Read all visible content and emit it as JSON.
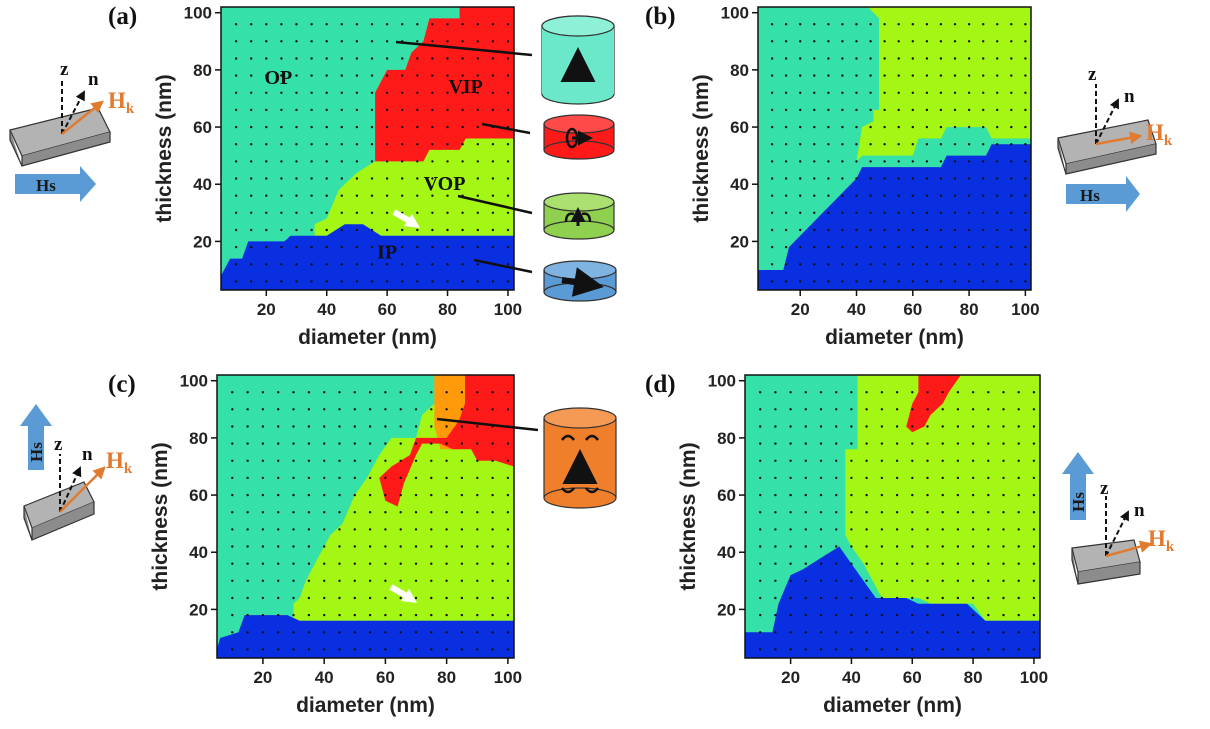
{
  "panels": [
    {
      "id": "a",
      "label": "(a)",
      "xlabel": "diameter (nm)",
      "ylabel": "thickness (nm)",
      "region_labels": [
        "OP",
        "VIP",
        "VOP",
        "IP"
      ],
      "field": "horizontal"
    },
    {
      "id": "b",
      "label": "(b)",
      "xlabel": "diameter (nm)",
      "ylabel": "thickness (nm)",
      "region_labels": [],
      "field": "horizontal"
    },
    {
      "id": "c",
      "label": "(c)",
      "xlabel": "diameter (nm)",
      "ylabel": "thickness (nm)",
      "region_labels": [],
      "field": "vertical"
    },
    {
      "id": "d",
      "label": "(d)",
      "xlabel": "diameter (nm)",
      "ylabel": "thickness (nm)",
      "region_labels": [],
      "field": "vertical"
    }
  ],
  "legend_symbols": {
    "z": "z",
    "n": "n",
    "hk": "H",
    "hk_sub": "k",
    "hs": "Hs"
  },
  "colors": {
    "op": "#35e1a8",
    "vip": "#ff1a1a",
    "vop": "#a4f714",
    "ip": "#0a2fe0",
    "vortex_orange": "#ff9a0a",
    "hk": "#e07b30",
    "hs": "#5b9bd5"
  },
  "chart_data": [
    {
      "type": "heatmap",
      "panel": "a",
      "xlabel": "diameter (nm)",
      "ylabel": "thickness (nm)",
      "xlim": [
        5,
        102
      ],
      "ylim": [
        3,
        102
      ],
      "xticks": [
        20,
        40,
        60,
        80,
        100
      ],
      "yticks": [
        20,
        40,
        60,
        80,
        100
      ],
      "regions": [
        {
          "name": "OP",
          "color": "#35e1a8",
          "polygon": [
            [
              5,
              3
            ],
            [
              102,
              3
            ],
            [
              102,
              102
            ],
            [
              5,
              102
            ]
          ]
        },
        {
          "name": "VOP",
          "color": "#a4f714",
          "polygon": [
            [
              36,
              22
            ],
            [
              102,
              22
            ],
            [
              102,
              60
            ],
            [
              58,
              60
            ],
            [
              56,
              48
            ],
            [
              50,
              44
            ],
            [
              44,
              38
            ],
            [
              40,
              28
            ],
            [
              36,
              26
            ]
          ]
        },
        {
          "name": "VIP",
          "color": "#ff1a1a",
          "polygon": [
            [
              56,
              48
            ],
            [
              72,
              48
            ],
            [
              74,
              52
            ],
            [
              84,
              52
            ],
            [
              86,
              56
            ],
            [
              102,
              56
            ],
            [
              102,
              102
            ],
            [
              84,
              102
            ],
            [
              84,
              98
            ],
            [
              74,
              98
            ],
            [
              72,
              90
            ],
            [
              68,
              86
            ],
            [
              66,
              80
            ],
            [
              60,
              80
            ],
            [
              56,
              72
            ]
          ]
        },
        {
          "name": "IP",
          "color": "#0a2fe0",
          "polygon": [
            [
              5,
              3
            ],
            [
              102,
              3
            ],
            [
              102,
              22
            ],
            [
              58,
              22
            ],
            [
              52,
              26
            ],
            [
              46,
              26
            ],
            [
              40,
              22
            ],
            [
              28,
              22
            ],
            [
              26,
              20
            ],
            [
              14,
              20
            ],
            [
              12,
              14
            ],
            [
              8,
              14
            ],
            [
              5,
              8
            ]
          ]
        }
      ],
      "annotations": [
        {
          "text": "OP",
          "x": 24,
          "y": 75
        },
        {
          "text": "VIP",
          "x": 86,
          "y": 72
        },
        {
          "text": "VOP",
          "x": 79,
          "y": 38
        },
        {
          "text": "IP",
          "x": 60,
          "y": 14
        }
      ]
    },
    {
      "type": "heatmap",
      "panel": "b",
      "xlabel": "diameter (nm)",
      "ylabel": "thickness (nm)",
      "xlim": [
        5,
        102
      ],
      "ylim": [
        3,
        102
      ],
      "xticks": [
        20,
        40,
        60,
        80,
        100
      ],
      "yticks": [
        20,
        40,
        60,
        80,
        100
      ],
      "regions": [
        {
          "name": "OP",
          "color": "#35e1a8",
          "polygon": [
            [
              5,
              3
            ],
            [
              102,
              3
            ],
            [
              102,
              102
            ],
            [
              5,
              102
            ]
          ]
        },
        {
          "name": "VOP",
          "color": "#a4f714",
          "polygon": [
            [
              42,
              102
            ],
            [
              102,
              102
            ],
            [
              102,
              56
            ],
            [
              88,
              56
            ],
            [
              86,
              60
            ],
            [
              72,
              60
            ],
            [
              70,
              56
            ],
            [
              62,
              56
            ],
            [
              60,
              50
            ],
            [
              42,
              50
            ],
            [
              40,
              48
            ],
            [
              42,
              60
            ],
            [
              46,
              62
            ],
            [
              46,
              66
            ],
            [
              48,
              66
            ],
            [
              48,
              98
            ],
            [
              44,
              102
            ]
          ]
        },
        {
          "name": "IP",
          "color": "#0a2fe0",
          "polygon": [
            [
              5,
              3
            ],
            [
              102,
              3
            ],
            [
              102,
              54
            ],
            [
              88,
              54
            ],
            [
              86,
              50
            ],
            [
              72,
              50
            ],
            [
              70,
              46
            ],
            [
              42,
              46
            ],
            [
              40,
              42
            ],
            [
              36,
              38
            ],
            [
              32,
              34
            ],
            [
              28,
              30
            ],
            [
              24,
              26
            ],
            [
              20,
              22
            ],
            [
              16,
              18
            ],
            [
              14,
              10
            ],
            [
              5,
              10
            ]
          ]
        }
      ],
      "annotations": []
    },
    {
      "type": "heatmap",
      "panel": "c",
      "xlabel": "diameter (nm)",
      "ylabel": "thickness (nm)",
      "xlim": [
        5,
        102
      ],
      "ylim": [
        3,
        102
      ],
      "xticks": [
        20,
        40,
        60,
        80,
        100
      ],
      "yticks": [
        20,
        40,
        60,
        80,
        100
      ],
      "regions": [
        {
          "name": "OP",
          "color": "#35e1a8",
          "polygon": [
            [
              5,
              3
            ],
            [
              102,
              3
            ],
            [
              102,
              102
            ],
            [
              5,
              102
            ]
          ]
        },
        {
          "name": "VOP",
          "color": "#a4f714",
          "polygon": [
            [
              30,
              16
            ],
            [
              102,
              16
            ],
            [
              102,
              102
            ],
            [
              76,
              102
            ],
            [
              76,
              92
            ],
            [
              72,
              88
            ],
            [
              70,
              80
            ],
            [
              62,
              80
            ],
            [
              58,
              74
            ],
            [
              54,
              66
            ],
            [
              50,
              60
            ],
            [
              46,
              50
            ],
            [
              42,
              46
            ],
            [
              38,
              38
            ],
            [
              34,
              30
            ],
            [
              32,
              24
            ],
            [
              30,
              22
            ]
          ]
        },
        {
          "name": "Orange",
          "color": "#ff9a0a",
          "polygon": [
            [
              76,
              102
            ],
            [
              88,
              102
            ],
            [
              88,
              80
            ],
            [
              84,
              76
            ],
            [
              78,
              76
            ],
            [
              76,
              84
            ]
          ]
        },
        {
          "name": "VIP",
          "color": "#ff1a1a",
          "polygon": [
            [
              86,
              102
            ],
            [
              102,
              102
            ],
            [
              102,
              70
            ],
            [
              96,
              72
            ],
            [
              90,
              72
            ],
            [
              88,
              76
            ],
            [
              82,
              76
            ],
            [
              78,
              78
            ],
            [
              72,
              78
            ],
            [
              70,
              74
            ],
            [
              66,
              64
            ],
            [
              64,
              56
            ],
            [
              60,
              58
            ],
            [
              58,
              66
            ],
            [
              62,
              70
            ],
            [
              68,
              74
            ],
            [
              70,
              80
            ],
            [
              80,
              80
            ],
            [
              84,
              86
            ],
            [
              86,
              92
            ]
          ]
        },
        {
          "name": "IP",
          "color": "#0a2fe0",
          "polygon": [
            [
              5,
              3
            ],
            [
              102,
              3
            ],
            [
              102,
              16
            ],
            [
              32,
              16
            ],
            [
              28,
              18
            ],
            [
              14,
              18
            ],
            [
              12,
              12
            ],
            [
              6,
              10
            ],
            [
              5,
              6
            ]
          ]
        }
      ],
      "annotations": []
    },
    {
      "type": "heatmap",
      "panel": "d",
      "xlabel": "diameter (nm)",
      "ylabel": "thickness (nm)",
      "xlim": [
        5,
        102
      ],
      "ylim": [
        3,
        102
      ],
      "xticks": [
        20,
        40,
        60,
        80,
        100
      ],
      "yticks": [
        20,
        40,
        60,
        80,
        100
      ],
      "regions": [
        {
          "name": "OP",
          "color": "#35e1a8",
          "polygon": [
            [
              5,
              3
            ],
            [
              102,
              3
            ],
            [
              102,
              102
            ],
            [
              5,
              102
            ]
          ]
        },
        {
          "name": "VOP",
          "color": "#a4f714",
          "polygon": [
            [
              42,
              102
            ],
            [
              102,
              102
            ],
            [
              102,
              16
            ],
            [
              84,
              16
            ],
            [
              80,
              22
            ],
            [
              66,
              22
            ],
            [
              62,
              24
            ],
            [
              50,
              24
            ],
            [
              44,
              36
            ],
            [
              40,
              42
            ],
            [
              38,
              46
            ],
            [
              38,
              76
            ],
            [
              42,
              76
            ]
          ]
        },
        {
          "name": "VIP",
          "color": "#ff1a1a",
          "polygon": [
            [
              62,
              102
            ],
            [
              76,
              102
            ],
            [
              72,
              96
            ],
            [
              70,
              92
            ],
            [
              66,
              88
            ],
            [
              64,
              84
            ],
            [
              60,
              82
            ],
            [
              58,
              84
            ],
            [
              60,
              92
            ],
            [
              62,
              96
            ]
          ]
        },
        {
          "name": "IP",
          "color": "#0a2fe0",
          "polygon": [
            [
              5,
              3
            ],
            [
              102,
              3
            ],
            [
              102,
              16
            ],
            [
              84,
              16
            ],
            [
              78,
              22
            ],
            [
              62,
              22
            ],
            [
              58,
              24
            ],
            [
              48,
              24
            ],
            [
              40,
              36
            ],
            [
              36,
              42
            ],
            [
              30,
              38
            ],
            [
              24,
              34
            ],
            [
              20,
              32
            ],
            [
              16,
              22
            ],
            [
              14,
              12
            ],
            [
              5,
              12
            ]
          ]
        }
      ],
      "annotations": []
    }
  ]
}
